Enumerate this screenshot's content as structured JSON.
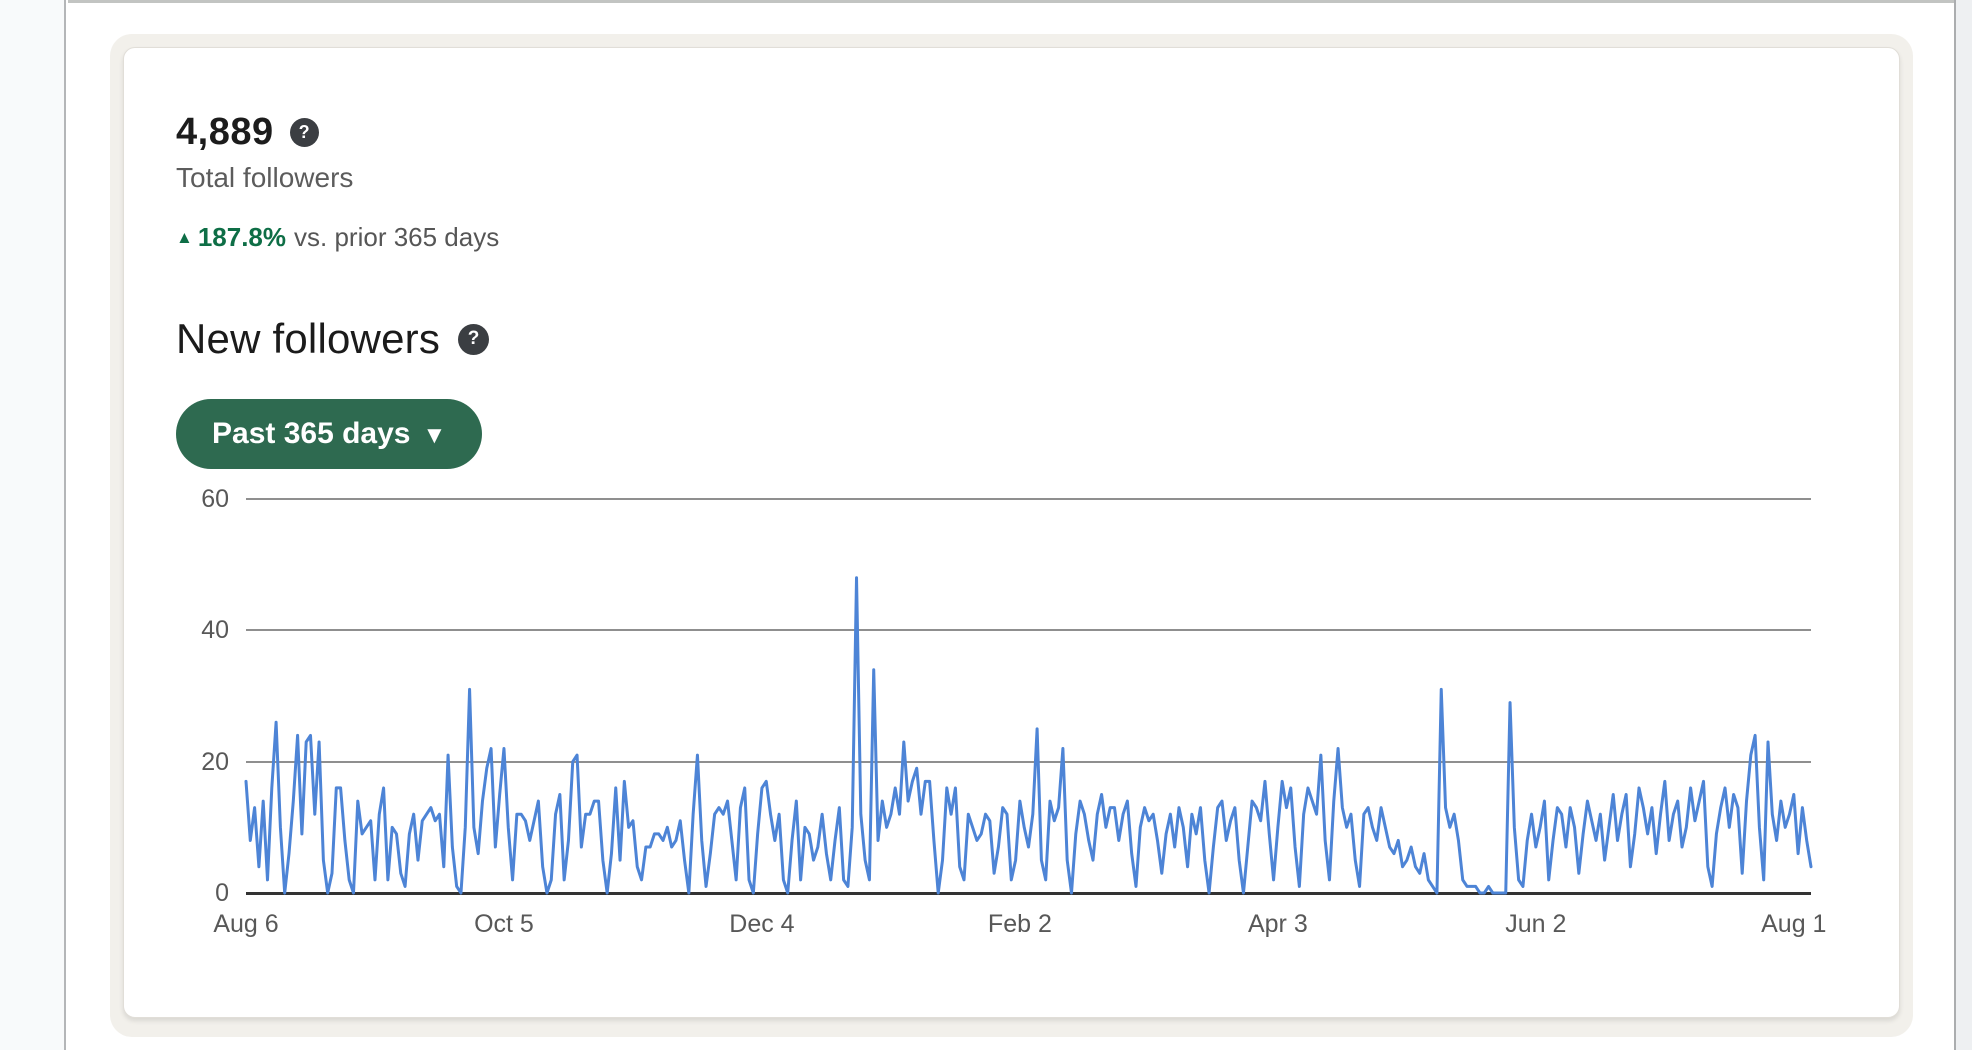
{
  "summary": {
    "value": "4,889",
    "label": "Total followers",
    "delta_arrow": "▲",
    "delta": "187.8%",
    "delta_suffix": "vs. prior 365 days"
  },
  "section": {
    "title": "New followers"
  },
  "range_button": {
    "label": "Past 365 days",
    "caret": "▼"
  },
  "icons": {
    "help_glyph": "?"
  },
  "colors": {
    "accent_green": "#2e6a50",
    "delta_green": "#0e6e46",
    "line_blue": "#4d84d6",
    "gridline_gray": "#8f8f8f",
    "axis_black": "#333333",
    "card_band": "#f2f0eb"
  },
  "chart_data": {
    "type": "line",
    "title": "New followers per day (past 365 days)",
    "xlabel": "",
    "ylabel": "",
    "ylim": [
      0,
      60
    ],
    "grid": true,
    "legend": "none",
    "y_ticks": [
      0,
      20,
      40,
      60
    ],
    "x_tick_labels": [
      "Aug 6",
      "Oct 5",
      "Dec 4",
      "Feb 2",
      "Apr 3",
      "Jun 2",
      "Aug 1"
    ],
    "x_tick_days": [
      0,
      60,
      120,
      180,
      240,
      300,
      360
    ],
    "line_color": "#4d84d6",
    "values": [
      17,
      8,
      13,
      4,
      14,
      2,
      16,
      26,
      10,
      0,
      6,
      14,
      24,
      9,
      23,
      24,
      12,
      23,
      5,
      0,
      3,
      16,
      16,
      8,
      2,
      0,
      14,
      9,
      10,
      11,
      2,
      12,
      16,
      2,
      10,
      9,
      3,
      1,
      9,
      12,
      5,
      11,
      12,
      13,
      11,
      12,
      4,
      21,
      7,
      1,
      0,
      10,
      31,
      10,
      6,
      14,
      19,
      22,
      7,
      15,
      22,
      10,
      2,
      12,
      12,
      11,
      8,
      11,
      14,
      4,
      0,
      2,
      12,
      15,
      2,
      8,
      20,
      21,
      7,
      12,
      12,
      14,
      14,
      5,
      0,
      6,
      16,
      5,
      17,
      10,
      11,
      4,
      2,
      7,
      7,
      9,
      9,
      8,
      10,
      7,
      8,
      11,
      5,
      0,
      12,
      21,
      8,
      1,
      6,
      12,
      13,
      12,
      14,
      8,
      2,
      13,
      16,
      2,
      0,
      9,
      16,
      17,
      12,
      8,
      12,
      2,
      0,
      8,
      14,
      2,
      10,
      9,
      5,
      7,
      12,
      6,
      2,
      8,
      13,
      2,
      1,
      10,
      48,
      12,
      5,
      2,
      34,
      8,
      14,
      10,
      12,
      16,
      12,
      23,
      14,
      17,
      19,
      12,
      17,
      17,
      8,
      0,
      5,
      16,
      12,
      16,
      4,
      2,
      12,
      10,
      8,
      9,
      12,
      11,
      3,
      7,
      13,
      12,
      2,
      5,
      14,
      10,
      7,
      12,
      25,
      5,
      2,
      14,
      11,
      13,
      22,
      5,
      0,
      9,
      14,
      12,
      8,
      5,
      12,
      15,
      10,
      13,
      13,
      8,
      12,
      14,
      6,
      1,
      10,
      13,
      11,
      12,
      8,
      3,
      9,
      12,
      7,
      13,
      10,
      4,
      12,
      9,
      13,
      5,
      0,
      7,
      13,
      14,
      8,
      11,
      13,
      5,
      0,
      7,
      14,
      13,
      11,
      17,
      9,
      2,
      10,
      17,
      13,
      16,
      7,
      1,
      12,
      16,
      14,
      12,
      21,
      8,
      2,
      14,
      22,
      13,
      10,
      12,
      5,
      1,
      12,
      13,
      10,
      8,
      13,
      10,
      7,
      6,
      8,
      4,
      5,
      7,
      4,
      3,
      6,
      2,
      1,
      0,
      31,
      13,
      10,
      12,
      8,
      2,
      1,
      1,
      1,
      0,
      0,
      1,
      0,
      0,
      0,
      0,
      29,
      10,
      2,
      1,
      8,
      12,
      7,
      10,
      14,
      2,
      8,
      13,
      12,
      7,
      13,
      10,
      3,
      9,
      14,
      11,
      8,
      12,
      5,
      10,
      15,
      8,
      12,
      15,
      4,
      9,
      16,
      13,
      9,
      13,
      6,
      12,
      17,
      8,
      12,
      14,
      7,
      10,
      16,
      11,
      14,
      17,
      4,
      1,
      9,
      13,
      16,
      10,
      15,
      13,
      3,
      14,
      21,
      24,
      10,
      2,
      23,
      12,
      8,
      14,
      10,
      12,
      15,
      6,
      13,
      8,
      4
    ]
  }
}
